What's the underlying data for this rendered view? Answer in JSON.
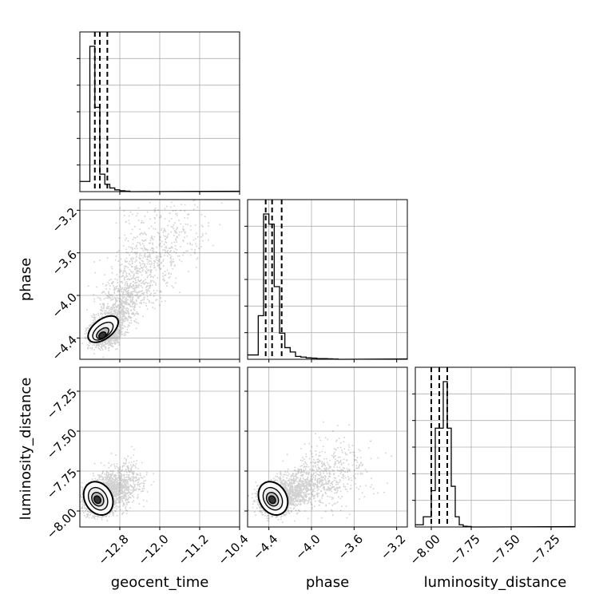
{
  "chart_data": {
    "type": "corner",
    "grid": true,
    "parameters": [
      "geocent_time",
      "phase",
      "luminosity_distance"
    ],
    "axes": {
      "geocent_time": {
        "range": [
          -13.6,
          -10.4
        ],
        "ticks": [
          "-12.8",
          "-12.0",
          "-11.2",
          "-10.4"
        ],
        "tick_values": [
          -12.8,
          -12.0,
          -11.2,
          -10.4
        ]
      },
      "phase": {
        "range": [
          -4.6,
          -3.1
        ],
        "ticks": [
          "-4.4",
          "-4.0",
          "-3.6",
          "-3.2"
        ],
        "tick_values": [
          -4.4,
          -4.0,
          -3.6,
          -3.2
        ]
      },
      "luminosity_distance": {
        "range": [
          -8.1,
          -7.1
        ],
        "ticks": [
          "-8.00",
          "-7.75",
          "-7.50",
          "-7.25"
        ],
        "tick_values": [
          -8.0,
          -7.75,
          -7.5,
          -7.25
        ]
      }
    },
    "histograms": [
      {
        "parameter": "geocent_time",
        "bin_edges": [
          -13.6,
          -13.4,
          -13.3,
          -13.2,
          -13.1,
          -13.0,
          -12.9,
          -12.8,
          -12.7,
          -12.6,
          -12.5
        ],
        "counts": [
          0.07,
          1.0,
          0.58,
          0.12,
          0.05,
          0.025,
          0.012,
          0.006,
          0.003,
          0.0
        ],
        "quantiles": [
          -13.3,
          -13.2,
          -13.05
        ]
      },
      {
        "parameter": "phase",
        "bin_edges": [
          -4.6,
          -4.5,
          -4.45,
          -4.4,
          -4.35,
          -4.3,
          -4.25,
          -4.2,
          -4.15,
          -4.1,
          -4.05,
          -4.0,
          -3.95,
          -3.9,
          -3.85,
          -3.8,
          -3.75,
          -3.7
        ],
        "counts": [
          0.03,
          0.3,
          1.0,
          0.93,
          0.5,
          0.18,
          0.08,
          0.05,
          0.02,
          0.015,
          0.01,
          0.008,
          0.005,
          0.005,
          0.003,
          0.002,
          0.0
        ],
        "quantiles": [
          -4.43,
          -4.37,
          -4.28
        ]
      },
      {
        "parameter": "luminosity_distance",
        "bin_edges": [
          -8.1,
          -8.05,
          -8.0,
          -7.975,
          -7.95,
          -7.925,
          -7.9,
          -7.875,
          -7.85,
          -7.825,
          -7.8,
          -7.775,
          -7.75,
          -7.7
        ],
        "counts": [
          0.015,
          0.07,
          0.25,
          0.68,
          0.68,
          1.0,
          0.68,
          0.28,
          0.07,
          0.015,
          0.005,
          0.003,
          0.0
        ],
        "quantiles": [
          -8.0,
          -7.95,
          -7.9
        ]
      }
    ],
    "scatter_panels": [
      {
        "x": "geocent_time",
        "y": "phase",
        "x_center": -13.15,
        "y_center": -4.38,
        "spread": "correlated"
      },
      {
        "x": "geocent_time",
        "y": "luminosity_distance",
        "x_center": -13.25,
        "y_center": -7.93,
        "spread": "elliptical"
      },
      {
        "x": "phase",
        "y": "luminosity_distance",
        "x_center": -4.37,
        "y_center": -7.93,
        "spread": "elliptical"
      }
    ]
  }
}
